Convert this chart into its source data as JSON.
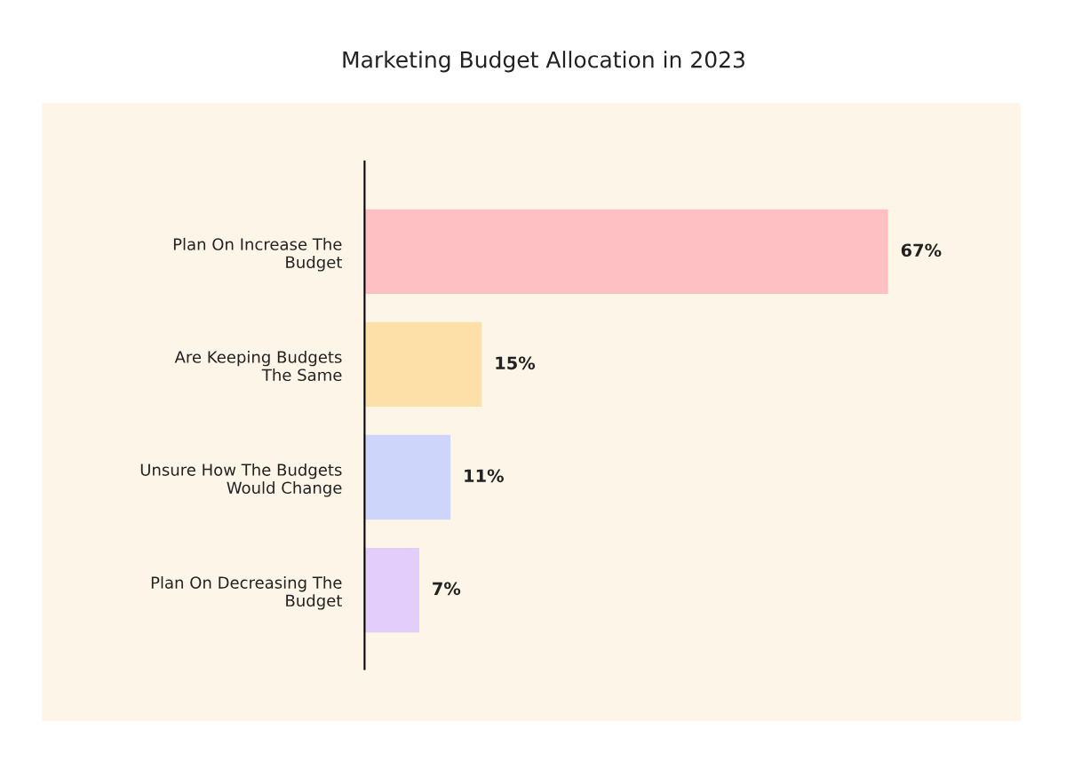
{
  "chart_data": {
    "type": "bar",
    "orientation": "horizontal",
    "title": "Marketing Budget Allocation in 2023",
    "categories": [
      "Plan On Increase The\nBudget",
      "Are Keeping Budgets\nThe Same",
      "Unsure How The Budgets\nWould Change",
      "Plan On Decreasing The\nBudget"
    ],
    "values": [
      67,
      15,
      11,
      7
    ],
    "value_labels": [
      "67%",
      "15%",
      "11%",
      "7%"
    ],
    "colors": [
      "#ffc0c3",
      "#fde0a8",
      "#cdd5fa",
      "#e3cdfb"
    ],
    "grid": false,
    "legend": false
  }
}
